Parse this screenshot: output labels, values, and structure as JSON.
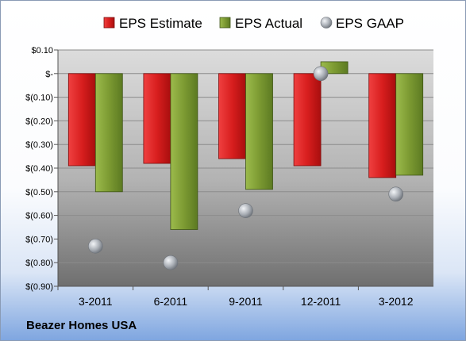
{
  "company": "Beazer Homes USA",
  "chart_data": {
    "type": "bar",
    "categories": [
      "3-2011",
      "6-2011",
      "9-2011",
      "12-2011",
      "3-2012"
    ],
    "series": [
      {
        "name": "EPS Estimate",
        "type": "bar",
        "color": "#d81e1e",
        "values": [
          -0.39,
          -0.38,
          -0.36,
          -0.39,
          -0.44
        ]
      },
      {
        "name": "EPS Actual",
        "type": "bar",
        "color": "#7c9a32",
        "values": [
          -0.5,
          -0.66,
          -0.49,
          0.05,
          -0.43
        ]
      },
      {
        "name": "EPS GAAP",
        "type": "scatter",
        "color": "#a9aeb5",
        "values": [
          -0.73,
          -0.8,
          -0.58,
          0.0,
          -0.51
        ]
      }
    ],
    "yticks": [
      0.1,
      0.0,
      -0.1,
      -0.2,
      -0.3,
      -0.4,
      -0.5,
      -0.6,
      -0.7,
      -0.8,
      -0.9
    ],
    "ytick_labels": [
      "$0.10",
      "$-",
      "$(0.10)",
      "$(0.20)",
      "$(0.30)",
      "$(0.40)",
      "$(0.50)",
      "$(0.60)",
      "$(0.70)",
      "$(0.80)",
      "$(0.90)"
    ],
    "ylim": [
      -0.9,
      0.1
    ],
    "grid": true,
    "legend_position": "top"
  }
}
